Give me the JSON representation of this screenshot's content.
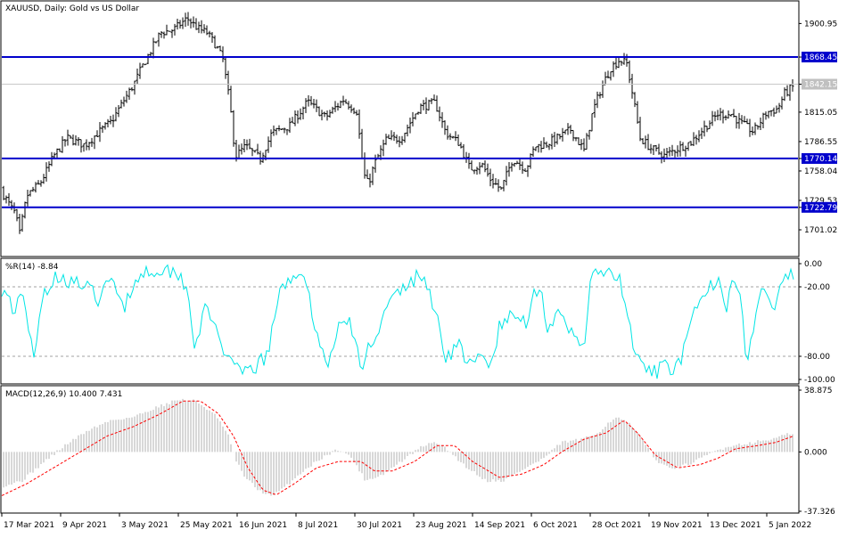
{
  "chart_data": [
    {
      "type": "ohlc",
      "title": "XAUUSD, Daily:  Gold vs US Dollar",
      "yticks": [
        "1900.95",
        "1868.45",
        "1842.15",
        "1815.05",
        "1786.55",
        "1770.14",
        "1758.04",
        "1729.53",
        "1722.79",
        "1701.02"
      ],
      "ylim": [
        1676,
        1922
      ],
      "current_price": "1842.15",
      "levels": [
        {
          "label": "1868.45",
          "value": 1868.45
        },
        {
          "label": "1770.14",
          "value": 1770.14
        },
        {
          "label": "1722.79",
          "value": 1722.79
        }
      ],
      "anchors": [
        [
          0,
          1741
        ],
        [
          12,
          1723
        ],
        [
          17,
          1717
        ],
        [
          22,
          1697
        ],
        [
          30,
          1734
        ],
        [
          45,
          1746
        ],
        [
          60,
          1772
        ],
        [
          75,
          1790
        ],
        [
          95,
          1783
        ],
        [
          110,
          1795
        ],
        [
          125,
          1806
        ],
        [
          140,
          1828
        ],
        [
          150,
          1842
        ],
        [
          160,
          1860
        ],
        [
          170,
          1876
        ],
        [
          180,
          1892
        ],
        [
          195,
          1895
        ],
        [
          210,
          1906
        ],
        [
          222,
          1896
        ],
        [
          232,
          1892
        ],
        [
          242,
          1880
        ],
        [
          250,
          1866
        ],
        [
          258,
          1822
        ],
        [
          264,
          1772
        ],
        [
          275,
          1782
        ],
        [
          292,
          1770
        ],
        [
          305,
          1795
        ],
        [
          325,
          1802
        ],
        [
          345,
          1825
        ],
        [
          365,
          1810
        ],
        [
          385,
          1827
        ],
        [
          400,
          1816
        ],
        [
          408,
          1755
        ],
        [
          413,
          1745
        ],
        [
          420,
          1765
        ],
        [
          433,
          1788
        ],
        [
          450,
          1790
        ],
        [
          470,
          1820
        ],
        [
          488,
          1824
        ],
        [
          500,
          1795
        ],
        [
          515,
          1785
        ],
        [
          527,
          1760
        ],
        [
          540,
          1765
        ],
        [
          550,
          1750
        ],
        [
          562,
          1740
        ],
        [
          575,
          1770
        ],
        [
          590,
          1760
        ],
        [
          600,
          1782
        ],
        [
          612,
          1784
        ],
        [
          625,
          1790
        ],
        [
          640,
          1798
        ],
        [
          655,
          1778
        ],
        [
          665,
          1816
        ],
        [
          675,
          1840
        ],
        [
          685,
          1858
        ],
        [
          695,
          1866
        ],
        [
          703,
          1862
        ],
        [
          710,
          1830
        ],
        [
          718,
          1790
        ],
        [
          730,
          1780
        ],
        [
          745,
          1773
        ],
        [
          760,
          1780
        ],
        [
          775,
          1786
        ],
        [
          790,
          1800
        ],
        [
          805,
          1813
        ],
        [
          820,
          1813
        ],
        [
          830,
          1805
        ],
        [
          845,
          1796
        ],
        [
          860,
          1815
        ],
        [
          872,
          1818
        ],
        [
          880,
          1833
        ],
        [
          890,
          1840
        ]
      ]
    },
    {
      "type": "line",
      "label": "%R(14) -8.84",
      "yticks": [
        "0.00",
        "-20.00",
        "-80.00",
        "-100.00"
      ],
      "ylim": [
        -100,
        0
      ],
      "anchors": [
        [
          0,
          -20
        ],
        [
          8,
          -25
        ],
        [
          15,
          -40
        ],
        [
          25,
          -30
        ],
        [
          32,
          -55
        ],
        [
          39,
          -90
        ],
        [
          45,
          -30
        ],
        [
          55,
          -20
        ],
        [
          65,
          -10
        ],
        [
          80,
          -15
        ],
        [
          95,
          -20
        ],
        [
          110,
          -30
        ],
        [
          125,
          -15
        ],
        [
          140,
          -35
        ],
        [
          155,
          -10
        ],
        [
          170,
          -5
        ],
        [
          185,
          -5
        ],
        [
          200,
          -8
        ],
        [
          210,
          -20
        ],
        [
          218,
          -70
        ],
        [
          230,
          -40
        ],
        [
          245,
          -60
        ],
        [
          258,
          -88
        ],
        [
          270,
          -95
        ],
        [
          285,
          -90
        ],
        [
          300,
          -80
        ],
        [
          312,
          -30
        ],
        [
          322,
          -15
        ],
        [
          336,
          -5
        ],
        [
          350,
          -40
        ],
        [
          360,
          -75
        ],
        [
          370,
          -85
        ],
        [
          380,
          -55
        ],
        [
          390,
          -45
        ],
        [
          398,
          -70
        ],
        [
          406,
          -92
        ],
        [
          414,
          -70
        ],
        [
          425,
          -55
        ],
        [
          440,
          -30
        ],
        [
          455,
          -20
        ],
        [
          470,
          -10
        ],
        [
          480,
          -20
        ],
        [
          488,
          -40
        ],
        [
          500,
          -80
        ],
        [
          515,
          -70
        ],
        [
          528,
          -90
        ],
        [
          540,
          -80
        ],
        [
          550,
          -90
        ],
        [
          560,
          -55
        ],
        [
          575,
          -45
        ],
        [
          590,
          -50
        ],
        [
          598,
          -25
        ],
        [
          606,
          -20
        ],
        [
          614,
          -55
        ],
        [
          625,
          -45
        ],
        [
          640,
          -60
        ],
        [
          655,
          -70
        ],
        [
          662,
          -20
        ],
        [
          670,
          -5
        ],
        [
          682,
          -10
        ],
        [
          695,
          -15
        ],
        [
          705,
          -50
        ],
        [
          715,
          -85
        ],
        [
          730,
          -95
        ],
        [
          745,
          -90
        ],
        [
          760,
          -88
        ],
        [
          770,
          -70
        ],
        [
          780,
          -40
        ],
        [
          790,
          -30
        ],
        [
          805,
          -10
        ],
        [
          815,
          -35
        ],
        [
          822,
          -5
        ],
        [
          830,
          -30
        ],
        [
          838,
          -85
        ],
        [
          845,
          -55
        ],
        [
          855,
          -20
        ],
        [
          868,
          -40
        ],
        [
          880,
          -15
        ],
        [
          890,
          -9
        ]
      ]
    },
    {
      "type": "bar+line",
      "label": "MACD(12,26,9) 10.400 7.431",
      "yticks": [
        "38.875",
        "0.000",
        "-37.326"
      ],
      "ylim": [
        -37.326,
        38.875
      ],
      "histogram_anchors": [
        [
          0,
          -22
        ],
        [
          25,
          -18
        ],
        [
          50,
          -6
        ],
        [
          75,
          5
        ],
        [
          100,
          14
        ],
        [
          125,
          20
        ],
        [
          150,
          22
        ],
        [
          175,
          28
        ],
        [
          200,
          33
        ],
        [
          220,
          32
        ],
        [
          240,
          24
        ],
        [
          255,
          12
        ],
        [
          265,
          -6
        ],
        [
          275,
          -16
        ],
        [
          290,
          -24
        ],
        [
          305,
          -28
        ],
        [
          320,
          -22
        ],
        [
          340,
          -12
        ],
        [
          360,
          -4
        ],
        [
          380,
          2
        ],
        [
          395,
          -4
        ],
        [
          410,
          -18
        ],
        [
          430,
          -14
        ],
        [
          455,
          -4
        ],
        [
          475,
          4
        ],
        [
          490,
          6
        ],
        [
          505,
          0
        ],
        [
          520,
          -8
        ],
        [
          545,
          -18
        ],
        [
          565,
          -18
        ],
        [
          590,
          -10
        ],
        [
          610,
          -4
        ],
        [
          630,
          6
        ],
        [
          655,
          8
        ],
        [
          670,
          12
        ],
        [
          690,
          22
        ],
        [
          705,
          18
        ],
        [
          720,
          8
        ],
        [
          740,
          -8
        ],
        [
          760,
          -10
        ],
        [
          780,
          -6
        ],
        [
          800,
          0
        ],
        [
          820,
          4
        ],
        [
          845,
          6
        ],
        [
          865,
          8
        ],
        [
          890,
          12
        ]
      ],
      "signal_anchors": [
        [
          0,
          -28
        ],
        [
          30,
          -20
        ],
        [
          60,
          -10
        ],
        [
          90,
          0
        ],
        [
          120,
          10
        ],
        [
          150,
          16
        ],
        [
          180,
          24
        ],
        [
          205,
          32
        ],
        [
          225,
          32
        ],
        [
          245,
          24
        ],
        [
          262,
          10
        ],
        [
          278,
          -10
        ],
        [
          295,
          -24
        ],
        [
          310,
          -27
        ],
        [
          330,
          -20
        ],
        [
          355,
          -10
        ],
        [
          380,
          -6
        ],
        [
          405,
          -6
        ],
        [
          420,
          -12
        ],
        [
          440,
          -12
        ],
        [
          465,
          -6
        ],
        [
          490,
          4
        ],
        [
          510,
          4
        ],
        [
          530,
          -6
        ],
        [
          560,
          -16
        ],
        [
          585,
          -14
        ],
        [
          610,
          -8
        ],
        [
          630,
          0
        ],
        [
          655,
          8
        ],
        [
          680,
          12
        ],
        [
          700,
          20
        ],
        [
          715,
          12
        ],
        [
          735,
          -2
        ],
        [
          760,
          -10
        ],
        [
          785,
          -8
        ],
        [
          805,
          -4
        ],
        [
          825,
          2
        ],
        [
          850,
          4
        ],
        [
          870,
          6
        ],
        [
          890,
          10
        ]
      ]
    }
  ],
  "xaxis": {
    "labels": [
      "17 Mar 2021",
      "9 Apr 2021",
      "3 May 2021",
      "25 May 2021",
      "16 Jun 2021",
      "8 Jul 2021",
      "30 Jul 2021",
      "23 Aug 2021",
      "14 Sep 2021",
      "6 Oct 2021",
      "28 Oct 2021",
      "19 Nov 2021",
      "13 Dec 2021",
      "5 Jan 2022"
    ]
  },
  "colors": {
    "level_line": "#0000cc",
    "level_label_bg": "#0000cc",
    "price_label_bg": "#c0c0c0",
    "bars": "#000000",
    "wpr_line": "#00e5e5",
    "macd_hist": "#b0b0b0",
    "macd_signal": "#ff0000",
    "grid_dash": "#a0a0a0"
  }
}
